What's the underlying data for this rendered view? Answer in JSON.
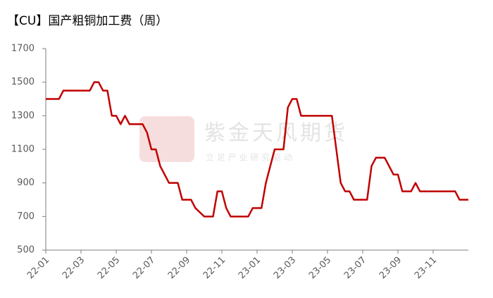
{
  "chart_data": {
    "type": "line",
    "title": "【CU】国产粗铜加工费（周）",
    "watermark": {
      "brand": "紫金天风期货",
      "slogan": "立 足 产 业   研 究 驱 动"
    },
    "categories": [
      "22-01",
      null,
      null,
      null,
      null,
      null,
      null,
      null,
      "22-03",
      null,
      null,
      null,
      null,
      null,
      null,
      null,
      "22-05",
      null,
      null,
      null,
      null,
      null,
      null,
      null,
      "22-07",
      null,
      null,
      null,
      null,
      null,
      null,
      null,
      "22-09",
      null,
      null,
      null,
      null,
      null,
      null,
      null,
      "22-11",
      null,
      null,
      null,
      null,
      null,
      null,
      null,
      "23-01",
      null,
      null,
      null,
      null,
      null,
      null,
      null,
      "23-03",
      null,
      null,
      null,
      null,
      null,
      null,
      null,
      "23-05",
      null,
      null,
      null,
      null,
      null,
      null,
      null,
      "23-07",
      null,
      null,
      null,
      null,
      null,
      null,
      null,
      "23-09",
      null,
      null,
      null,
      null,
      null,
      null,
      null,
      "23-11",
      null,
      null,
      null,
      null,
      null,
      null,
      null,
      null
    ],
    "series": [
      {
        "color": "#c00000",
        "values": [
          1400,
          1400,
          1400,
          1400,
          1450,
          1450,
          1450,
          1450,
          1450,
          1450,
          1450,
          1500,
          1500,
          1450,
          1450,
          1300,
          1300,
          1250,
          1300,
          1250,
          1250,
          1250,
          1250,
          1200,
          1100,
          1100,
          1000,
          950,
          900,
          900,
          900,
          800,
          800,
          800,
          750,
          725,
          700,
          700,
          700,
          850,
          850,
          750,
          700,
          700,
          700,
          700,
          700,
          750,
          750,
          750,
          900,
          1000,
          1100,
          1100,
          1100,
          1350,
          1400,
          1400,
          1300,
          1300,
          1300,
          1300,
          1300,
          1300,
          1300,
          1300,
          1100,
          900,
          850,
          850,
          800,
          800,
          800,
          800,
          1000,
          1050,
          1050,
          1050,
          1000,
          950,
          950,
          850,
          850,
          850,
          900,
          850,
          850,
          850,
          850,
          850,
          850,
          850,
          850,
          850,
          800,
          800,
          800
        ]
      }
    ],
    "ylim": [
      500,
      1700
    ],
    "yticks": [
      500,
      700,
      900,
      1100,
      1300,
      1500,
      1700
    ],
    "grid": false
  }
}
